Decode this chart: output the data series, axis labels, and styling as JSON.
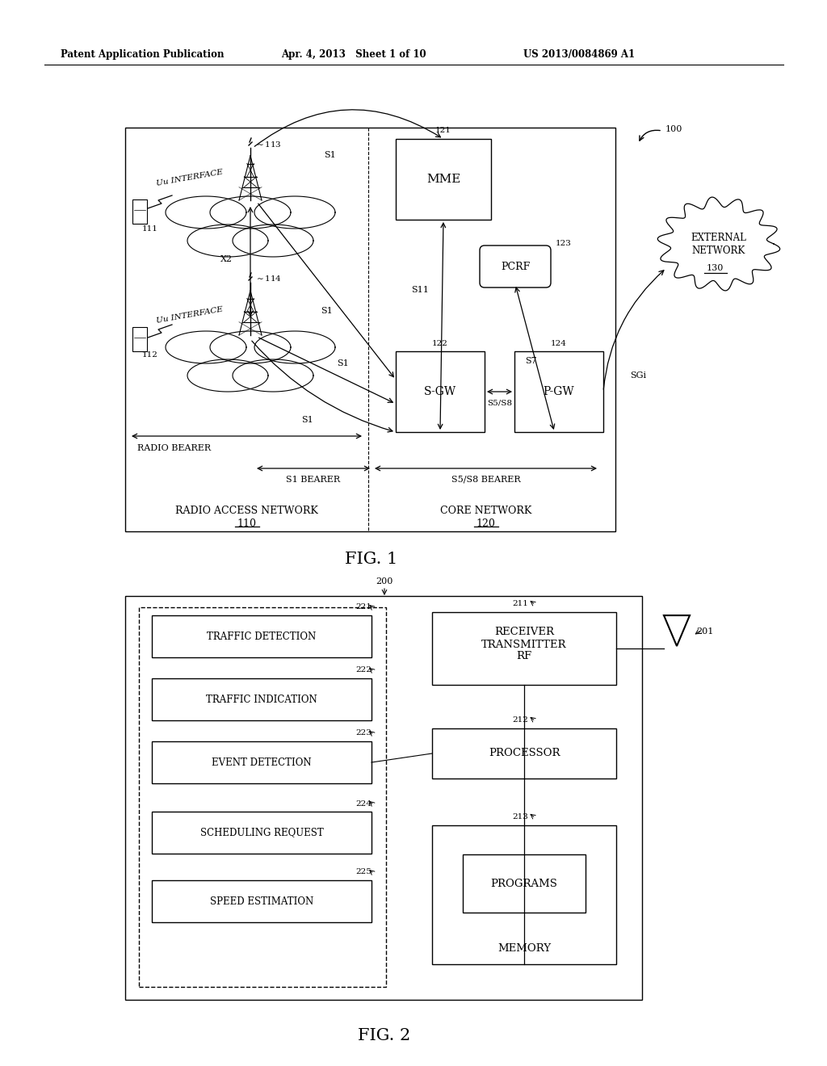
{
  "header_left": "Patent Application Publication",
  "header_mid": "Apr. 4, 2013   Sheet 1 of 10",
  "header_right": "US 2013/0084869 A1",
  "fig1_label": "FIG. 1",
  "fig2_label": "FIG. 2",
  "bg_color": "#ffffff",
  "line_color": "#000000"
}
